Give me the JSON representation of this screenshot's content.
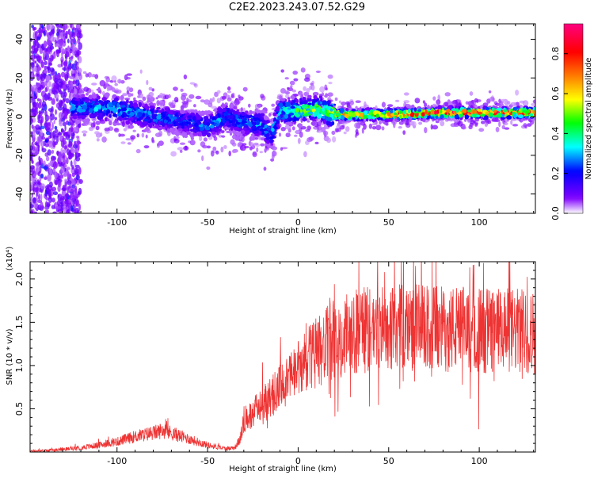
{
  "title": "C2E2.2023.243.07.52.G29",
  "chart_data": [
    {
      "type": "heatmap",
      "xlabel": "Height of straight line (km)",
      "ylabel": "Frequency (Hz)",
      "xlim": [
        -148,
        131
      ],
      "ylim": [
        -50,
        48
      ],
      "xticks": [
        -100,
        -50,
        0,
        50,
        100
      ],
      "yticks": [
        -40,
        -20,
        0,
        20,
        40
      ],
      "colorbar": {
        "label": "Normalized spectral amplitude",
        "range": [
          0,
          0.95
        ],
        "ticks": [
          0.0,
          0.2,
          0.4,
          0.6,
          0.8
        ],
        "colors": [
          "#ffffff",
          "#8000ff",
          "#0000ff",
          "#00ffff",
          "#00ff00",
          "#ffff00",
          "#ff8000",
          "#ff0000",
          "#ff0080"
        ]
      },
      "ridge": {
        "x": [
          -125,
          -100,
          -80,
          -60,
          -50,
          -40,
          -30,
          -20,
          -15,
          -10,
          0,
          10,
          15,
          20,
          50,
          80,
          100,
          131
        ],
        "frequency": [
          5,
          4,
          0,
          -3,
          -5,
          0,
          -3,
          -4,
          -10,
          3,
          3,
          4,
          3,
          1,
          1,
          2,
          2,
          2
        ],
        "peak_amplitude": [
          0.3,
          0.35,
          0.3,
          0.25,
          0.3,
          0.3,
          0.3,
          0.35,
          0.3,
          0.35,
          0.5,
          0.55,
          0.5,
          0.7,
          0.8,
          0.9,
          0.95,
          0.85
        ]
      }
    },
    {
      "type": "line",
      "xlabel": "Height of straight line (km)",
      "ylabel": "SNR (10 * v/v)",
      "y_multiplier": "(x10⁴)",
      "xlim": [
        -148,
        131
      ],
      "ylim": [
        0,
        2.2
      ],
      "xticks": [
        -100,
        -50,
        0,
        50,
        100
      ],
      "yticks": [
        0.5,
        1.0,
        1.5,
        2.0
      ],
      "color": "#ee3333",
      "series": [
        {
          "x": [
            -148,
            -135,
            -120,
            -110,
            -100,
            -90,
            -80,
            -75,
            -70,
            -60,
            -50,
            -40,
            -35,
            -32,
            -30,
            -25,
            -20,
            -15,
            -10,
            -5,
            0,
            5,
            10,
            20,
            30,
            40,
            50,
            60,
            70,
            80,
            90,
            100,
            110,
            120,
            131
          ],
          "y": [
            0.01,
            0.02,
            0.05,
            0.08,
            0.12,
            0.18,
            0.22,
            0.25,
            0.22,
            0.15,
            0.08,
            0.04,
            0.05,
            0.15,
            0.35,
            0.45,
            0.55,
            0.65,
            0.75,
            0.85,
            0.95,
            1.05,
            1.15,
            1.3,
            1.38,
            1.42,
            1.45,
            1.45,
            1.43,
            1.42,
            1.42,
            1.41,
            1.4,
            1.4,
            1.38
          ]
        }
      ]
    }
  ]
}
